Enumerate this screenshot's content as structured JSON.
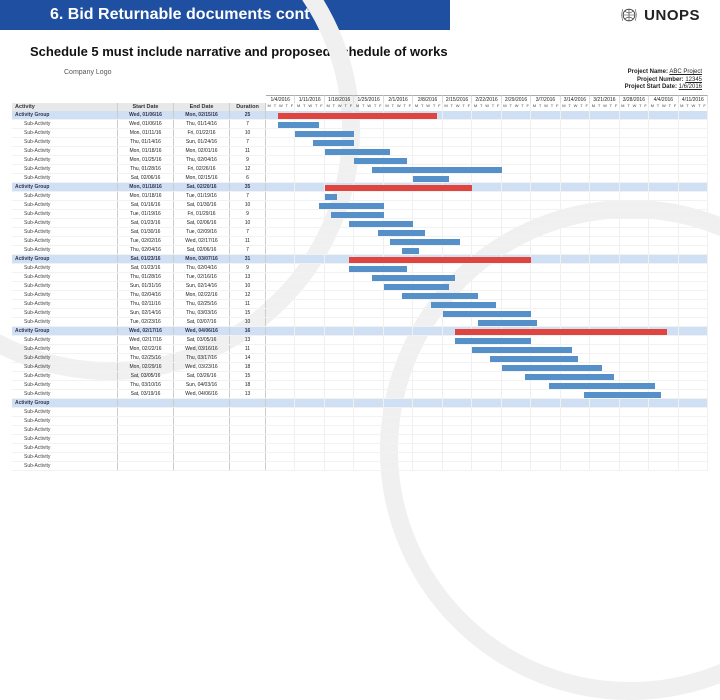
{
  "header": {
    "title": "6. Bid Returnable documents cont'd",
    "brand": "UNOPS"
  },
  "subtitle": "Schedule 5 must include narrative and proposed schedule of works",
  "colors": {
    "header_bg": "#1f4fa0",
    "group_row": "#cfe0f4",
    "bar_group": "#e0443f",
    "bar_sub": "#5690c9",
    "col_header_bg": "#e8e8e8"
  },
  "gantt": {
    "meta": {
      "logo_label": "Company Logo",
      "project_name_label": "Project Name:",
      "project_name": "ABC Project",
      "project_number_label": "Project Number:",
      "project_number": "12345",
      "project_start_label": "Project Start Date:",
      "project_start": "1/6/2016"
    },
    "columns": {
      "activity": "Activity",
      "start": "Start Date",
      "end": "End Date",
      "duration": "Duration"
    },
    "timeline": {
      "weeks": [
        "1/4/2016",
        "1/11/2016",
        "1/18/2016",
        "1/25/2016",
        "2/1/2016",
        "2/8/2016",
        "2/15/2016",
        "2/22/2016",
        "2/29/2016",
        "3/7/2016",
        "3/14/2016",
        "3/21/2016",
        "3/28/2016",
        "4/4/2016",
        "4/11/2016"
      ],
      "days": "MTWTF",
      "total_days": 75
    },
    "rows": [
      {
        "type": "group",
        "act": "Activity Group",
        "sd": "Wed, 01/06/16",
        "ed": "Mon, 02/15/16",
        "dur": "25",
        "start": 2,
        "len": 27
      },
      {
        "type": "sub",
        "act": "Sub-Activity",
        "sd": "Wed, 01/06/16",
        "ed": "Thu, 01/14/16",
        "dur": "7",
        "start": 2,
        "len": 7
      },
      {
        "type": "sub",
        "act": "Sub-Activity",
        "sd": "Mon, 01/11/16",
        "ed": "Fri, 01/22/16",
        "dur": "10",
        "start": 5,
        "len": 10
      },
      {
        "type": "sub",
        "act": "Sub-Activity",
        "sd": "Thu, 01/14/16",
        "ed": "Sun, 01/24/16",
        "dur": "7",
        "start": 8,
        "len": 7
      },
      {
        "type": "sub",
        "act": "Sub-Activity",
        "sd": "Mon, 01/18/16",
        "ed": "Mon, 02/01/16",
        "dur": "11",
        "start": 10,
        "len": 11
      },
      {
        "type": "sub",
        "act": "Sub-Activity",
        "sd": "Mon, 01/25/16",
        "ed": "Thu, 02/04/16",
        "dur": "9",
        "start": 15,
        "len": 9
      },
      {
        "type": "sub",
        "act": "Sub-Activity",
        "sd": "Thu, 01/28/16",
        "ed": "Fri, 02/26/16",
        "dur": "12",
        "start": 18,
        "len": 22
      },
      {
        "type": "sub",
        "act": "Sub-Activity",
        "sd": "Sat, 02/06/16",
        "ed": "Mon, 02/15/16",
        "dur": "6",
        "start": 25,
        "len": 6
      },
      {
        "type": "group",
        "act": "Activity Group",
        "sd": "Mon, 01/18/16",
        "ed": "Sat, 02/20/16",
        "dur": "35",
        "start": 10,
        "len": 25
      },
      {
        "type": "sub",
        "act": "Sub-Activity",
        "sd": "Mon, 01/18/16",
        "ed": "Tue, 01/19/16",
        "dur": "7",
        "start": 10,
        "len": 2
      },
      {
        "type": "sub",
        "act": "Sub-Activity",
        "sd": "Sat, 01/16/16",
        "ed": "Sat, 01/30/16",
        "dur": "10",
        "start": 9,
        "len": 11
      },
      {
        "type": "sub",
        "act": "Sub-Activity",
        "sd": "Tue, 01/19/16",
        "ed": "Fri, 01/29/16",
        "dur": "9",
        "start": 11,
        "len": 9
      },
      {
        "type": "sub",
        "act": "Sub-Activity",
        "sd": "Sat, 01/23/16",
        "ed": "Sat, 02/06/16",
        "dur": "10",
        "start": 14,
        "len": 11
      },
      {
        "type": "sub",
        "act": "Sub-Activity",
        "sd": "Sat, 01/30/16",
        "ed": "Tue, 02/09/16",
        "dur": "7",
        "start": 19,
        "len": 8
      },
      {
        "type": "sub",
        "act": "Sub-Activity",
        "sd": "Tue, 02/02/16",
        "ed": "Wed, 02/17/16",
        "dur": "11",
        "start": 21,
        "len": 12
      },
      {
        "type": "sub",
        "act": "Sub-Activity",
        "sd": "Thu, 02/04/16",
        "ed": "Sat, 02/06/16",
        "dur": "7",
        "start": 23,
        "len": 3
      },
      {
        "type": "group",
        "act": "Activity Group",
        "sd": "Sat, 01/23/16",
        "ed": "Mon, 03/07/16",
        "dur": "31",
        "start": 14,
        "len": 31
      },
      {
        "type": "sub",
        "act": "Sub-Activity",
        "sd": "Sat, 01/23/16",
        "ed": "Thu, 02/04/16",
        "dur": "9",
        "start": 14,
        "len": 10
      },
      {
        "type": "sub",
        "act": "Sub-Activity",
        "sd": "Thu, 01/28/16",
        "ed": "Tue, 02/16/16",
        "dur": "13",
        "start": 18,
        "len": 14
      },
      {
        "type": "sub",
        "act": "Sub-Activity",
        "sd": "Sun, 01/31/16",
        "ed": "Sun, 02/14/16",
        "dur": "10",
        "start": 20,
        "len": 11
      },
      {
        "type": "sub",
        "act": "Sub-Activity",
        "sd": "Thu, 02/04/16",
        "ed": "Mon, 02/22/16",
        "dur": "12",
        "start": 23,
        "len": 13
      },
      {
        "type": "sub",
        "act": "Sub-Activity",
        "sd": "Thu, 02/11/16",
        "ed": "Thu, 02/25/16",
        "dur": "11",
        "start": 28,
        "len": 11
      },
      {
        "type": "sub",
        "act": "Sub-Activity",
        "sd": "Sun, 02/14/16",
        "ed": "Thu, 03/03/16",
        "dur": "15",
        "start": 30,
        "len": 15
      },
      {
        "type": "sub",
        "act": "Sub-Activity",
        "sd": "Tue, 02/23/16",
        "ed": "Sat, 03/07/16",
        "dur": "10",
        "start": 36,
        "len": 10
      },
      {
        "type": "group",
        "act": "Activity Group",
        "sd": "Wed, 02/17/16",
        "ed": "Wed, 04/06/16",
        "dur": "16",
        "start": 32,
        "len": 36
      },
      {
        "type": "sub",
        "act": "Sub-Activity",
        "sd": "Wed, 02/17/16",
        "ed": "Sat, 03/05/16",
        "dur": "13",
        "start": 32,
        "len": 13
      },
      {
        "type": "sub",
        "act": "Sub-Activity",
        "sd": "Mon, 02/22/16",
        "ed": "Wed, 03/16/16",
        "dur": "11",
        "start": 35,
        "len": 17
      },
      {
        "type": "sub",
        "act": "Sub-Activity",
        "sd": "Thu, 02/25/16",
        "ed": "Thu, 03/17/16",
        "dur": "14",
        "start": 38,
        "len": 15
      },
      {
        "type": "sub",
        "act": "Sub-Activity",
        "sd": "Mon, 02/29/16",
        "ed": "Wed, 03/23/16",
        "dur": "18",
        "start": 40,
        "len": 17
      },
      {
        "type": "sub",
        "act": "Sub-Activity",
        "sd": "Sat, 03/05/16",
        "ed": "Sat, 03/26/16",
        "dur": "15",
        "start": 44,
        "len": 15
      },
      {
        "type": "sub",
        "act": "Sub-Activity",
        "sd": "Thu, 03/10/16",
        "ed": "Sun, 04/03/16",
        "dur": "18",
        "start": 48,
        "len": 18
      },
      {
        "type": "sub",
        "act": "Sub-Activity",
        "sd": "Sat, 03/19/16",
        "ed": "Wed, 04/06/16",
        "dur": "13",
        "start": 54,
        "len": 13
      },
      {
        "type": "group",
        "act": "Activity Group",
        "sd": "",
        "ed": "",
        "dur": "",
        "start": null,
        "len": null
      },
      {
        "type": "sub",
        "act": "Sub-Activity",
        "sd": "",
        "ed": "",
        "dur": "",
        "start": null,
        "len": null
      },
      {
        "type": "sub",
        "act": "Sub-Activity",
        "sd": "",
        "ed": "",
        "dur": "",
        "start": null,
        "len": null
      },
      {
        "type": "sub",
        "act": "Sub-Activity",
        "sd": "",
        "ed": "",
        "dur": "",
        "start": null,
        "len": null
      },
      {
        "type": "sub",
        "act": "Sub-Activity",
        "sd": "",
        "ed": "",
        "dur": "",
        "start": null,
        "len": null
      },
      {
        "type": "sub",
        "act": "Sub-Activity",
        "sd": "",
        "ed": "",
        "dur": "",
        "start": null,
        "len": null
      },
      {
        "type": "sub",
        "act": "Sub-Activity",
        "sd": "",
        "ed": "",
        "dur": "",
        "start": null,
        "len": null
      },
      {
        "type": "sub",
        "act": "Sub-Activity",
        "sd": "",
        "ed": "",
        "dur": "",
        "start": null,
        "len": null
      }
    ]
  }
}
